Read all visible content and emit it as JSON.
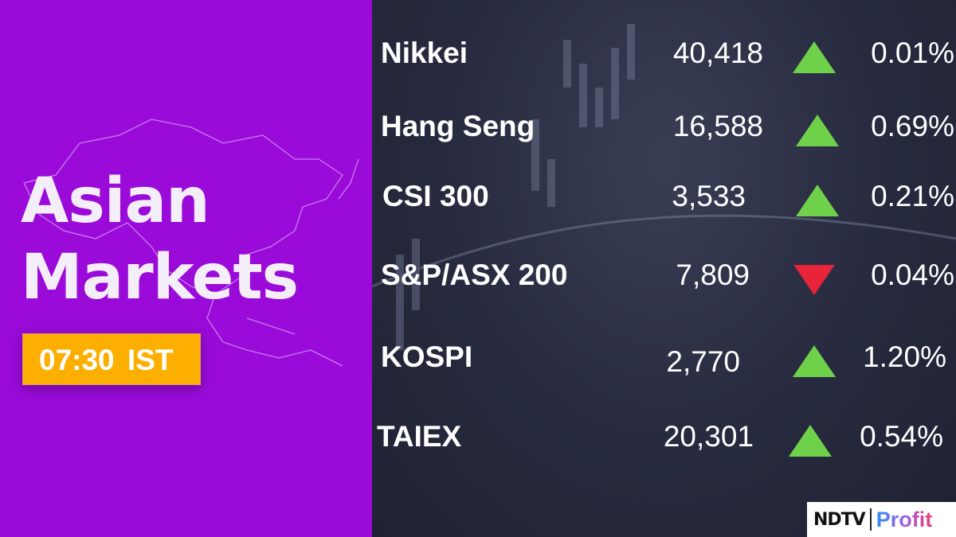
{
  "title_line1": "Asian",
  "title_line2": "Markets",
  "time": "07:30 IST",
  "colors": {
    "left_bg": "#9a0bd9",
    "time_badge": "#fdaf00",
    "up": "#6fd04a",
    "down": "#e8243a"
  },
  "markets": [
    {
      "name": "Nikkei",
      "value": "40,418",
      "direction": "up",
      "change": "0.01%"
    },
    {
      "name": "Hang Seng",
      "value": "16,588",
      "direction": "up",
      "change": "0.69%"
    },
    {
      "name": "CSI 300",
      "value": "3,533",
      "direction": "up",
      "change": "0.21%"
    },
    {
      "name": "S&P/ASX 200",
      "value": "7,809",
      "direction": "down",
      "change": "0.04%"
    },
    {
      "name": "KOSPI",
      "value": "2,770",
      "direction": "up",
      "change": "1.20%"
    },
    {
      "name": "TAIEX",
      "value": "20,301",
      "direction": "up",
      "change": "0.54%"
    }
  ],
  "logo": {
    "brand": "NDTV",
    "product": "Profit"
  }
}
